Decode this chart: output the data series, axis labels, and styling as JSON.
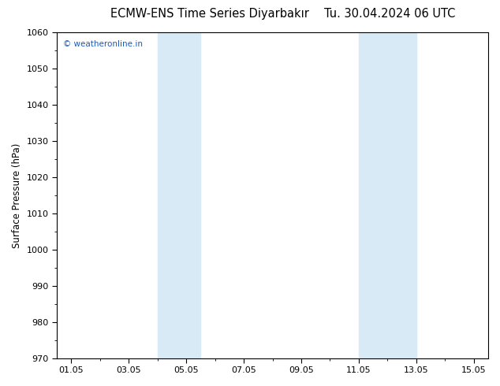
{
  "title_left": "ECMW-ENS Time Series Diyarbakır",
  "title_right": "Tu. 30.04.2024 06 UTC",
  "ylabel": "Surface Pressure (hPa)",
  "xlabel": "",
  "ylim": [
    970,
    1060
  ],
  "yticks": [
    970,
    980,
    990,
    1000,
    1010,
    1020,
    1030,
    1040,
    1050,
    1060
  ],
  "xtick_labels": [
    "01.05",
    "03.05",
    "05.05",
    "07.05",
    "09.05",
    "11.05",
    "13.05",
    "15.05"
  ],
  "xtick_positions": [
    1,
    3,
    5,
    7,
    9,
    11,
    13,
    15
  ],
  "xmin": 0.5,
  "xmax": 15.5,
  "shaded_bands": [
    {
      "xmin": 4.0,
      "xmax": 5.5
    },
    {
      "xmin": 11.0,
      "xmax": 13.0
    }
  ],
  "shaded_color": "#d8eaf6",
  "background_color": "#ffffff",
  "plot_bg_color": "#ffffff",
  "watermark_text": "© weatheronline.in",
  "watermark_color": "#1a5abf",
  "title_fontsize": 10.5,
  "label_fontsize": 8.5,
  "tick_fontsize": 8,
  "watermark_fontsize": 7.5
}
